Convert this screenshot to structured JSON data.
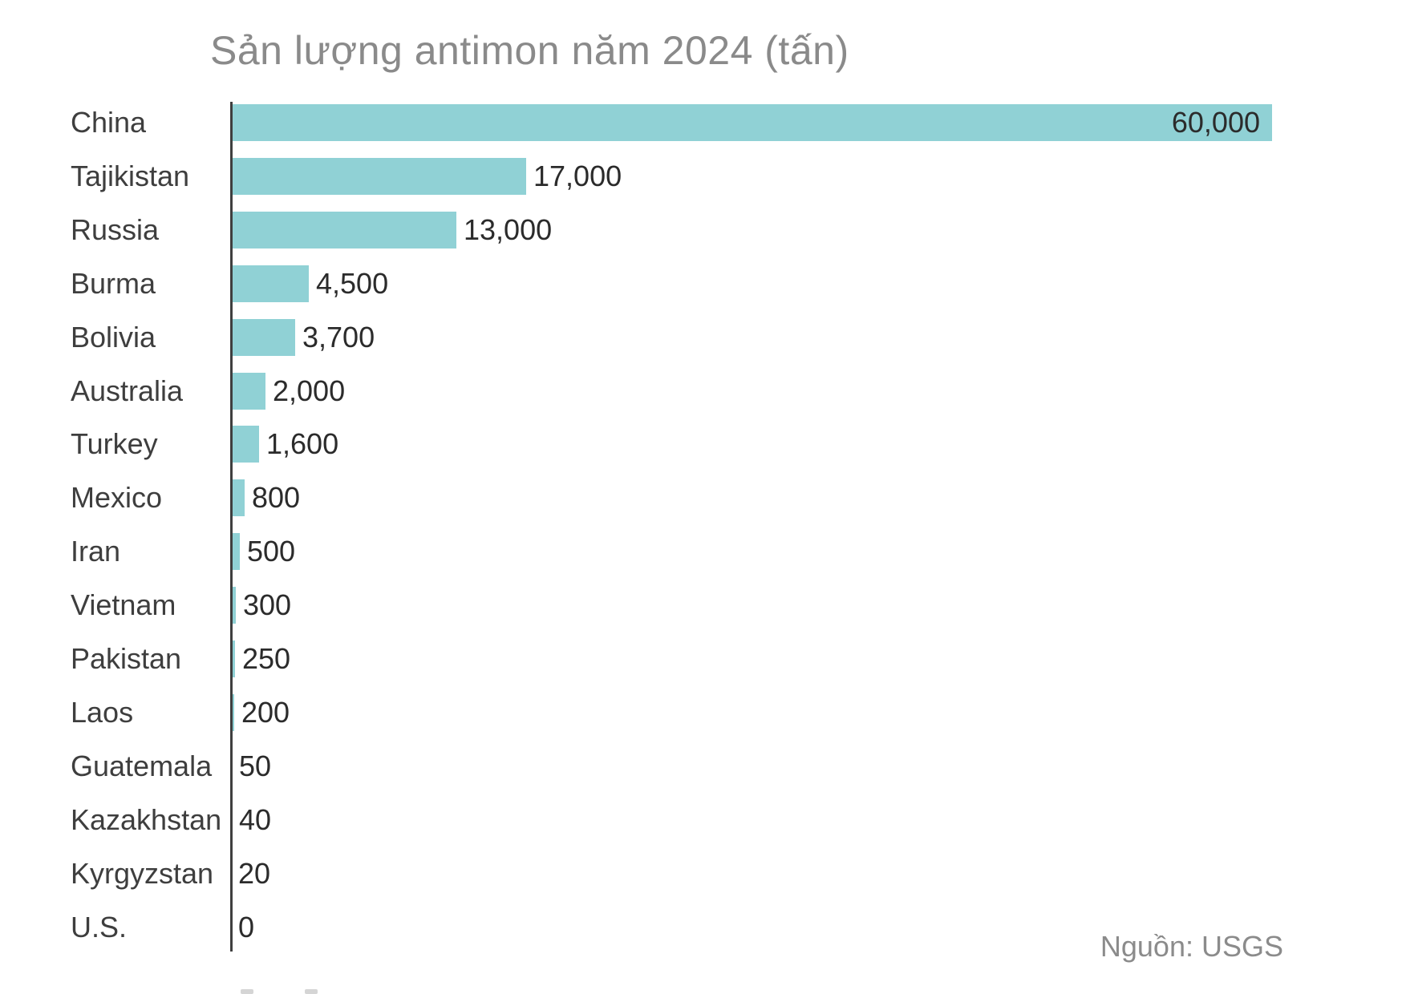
{
  "title": "Sản lượng antimon năm 2024 (tấn)",
  "source": "Nguồn: USGS",
  "chart_data": {
    "type": "bar",
    "orientation": "horizontal",
    "title": "Sản lượng antimon năm 2024 (tấn)",
    "unit": "tấn",
    "categories": [
      "China",
      "Tajikistan",
      "Russia",
      "Burma",
      "Bolivia",
      "Australia",
      "Turkey",
      "Mexico",
      "Iran",
      "Vietnam",
      "Pakistan",
      "Laos",
      "Guatemala",
      "Kazakhstan",
      "Kyrgyzstan",
      "U.S."
    ],
    "values": [
      60000,
      17000,
      13000,
      4500,
      3700,
      2000,
      1600,
      800,
      500,
      300,
      250,
      200,
      50,
      40,
      20,
      0
    ],
    "value_labels": [
      "60,000",
      "17,000",
      "13,000",
      "4,500",
      "3,700",
      "2,000",
      "1,600",
      "800",
      "500",
      "300",
      "250",
      "200",
      "50",
      "40",
      "20",
      "0"
    ],
    "xlim": [
      0,
      60000
    ],
    "grid": false,
    "legend": "none",
    "source_label": "Nguồn: USGS",
    "colors": {
      "bar": "#90d1d5",
      "axis": "#3f3f3f",
      "category_label": "#3e3e3e",
      "value_label": "#2b2b2b",
      "title": "#8a8a8a",
      "source": "#8b8b8b",
      "background": "#ffffff"
    }
  }
}
